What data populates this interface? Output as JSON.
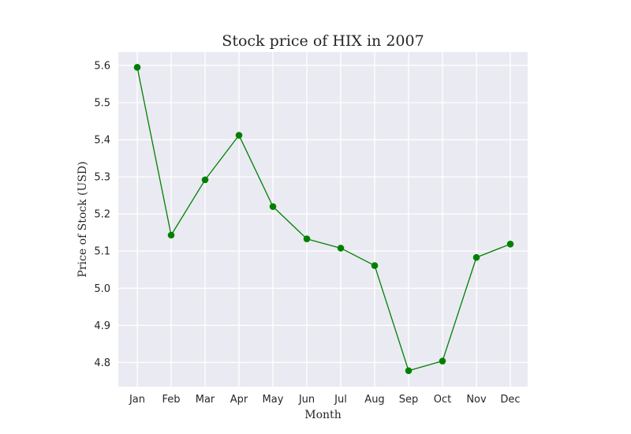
{
  "chart_data": {
    "type": "line",
    "title": "Stock price of HIX in 2007",
    "xlabel": "Month",
    "ylabel": "Price of Stock (USD)",
    "categories": [
      "Jan",
      "Feb",
      "Mar",
      "Apr",
      "May",
      "Jun",
      "Jul",
      "Aug",
      "Sep",
      "Oct",
      "Nov",
      "Dec"
    ],
    "series": [
      {
        "values": [
          5.595,
          5.143,
          5.292,
          5.412,
          5.22,
          5.133,
          5.108,
          5.061,
          4.778,
          4.804,
          5.083,
          5.119
        ],
        "color": "#008000",
        "marker": "circle"
      }
    ],
    "ylim": [
      4.735,
      5.636
    ],
    "yticks": [
      4.8,
      4.9,
      5.0,
      5.1,
      5.2,
      5.3,
      5.4,
      5.5,
      5.6
    ],
    "ytick_labels": [
      "4.8",
      "4.9",
      "5.0",
      "5.1",
      "5.2",
      "5.3",
      "5.4",
      "5.5",
      "5.6"
    ],
    "grid": true,
    "background_color": "#eaeaf2",
    "grid_color": "#ffffff"
  }
}
